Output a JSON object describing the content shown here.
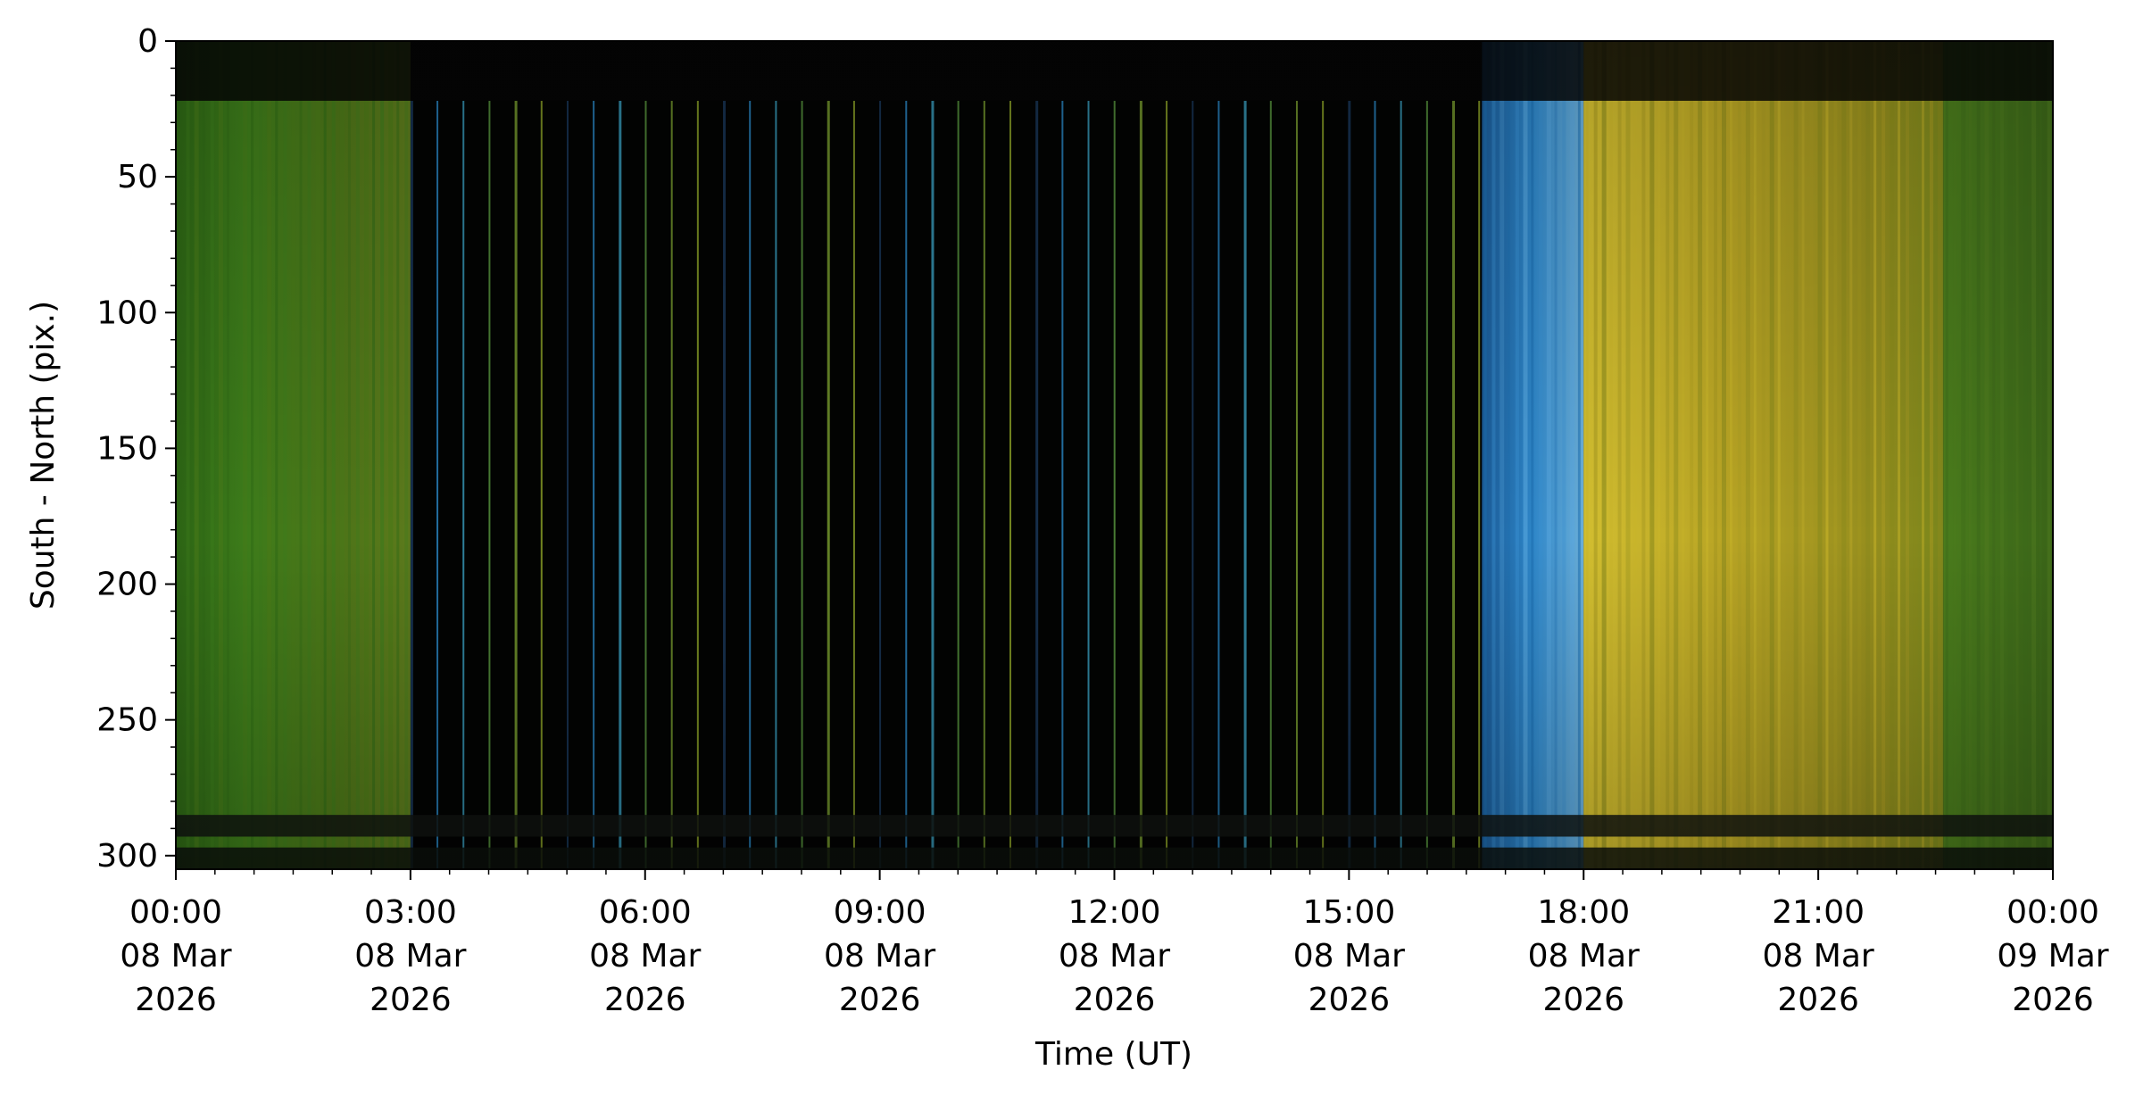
{
  "chart_data": {
    "type": "heatmap",
    "title": "",
    "xlabel": "Time (UT)",
    "ylabel": "South - North (pix.)",
    "ylim": [
      305,
      0
    ],
    "y_ticks": [
      0,
      50,
      100,
      150,
      200,
      250,
      300
    ],
    "y_tick_labels": [
      "0",
      "50",
      "100",
      "150",
      "200",
      "250",
      "300"
    ],
    "x_unit": "hours since 00:00 08 Mar 2026",
    "xlim": [
      0,
      24
    ],
    "x_ticks": [
      {
        "hours": 0,
        "lines": [
          "00:00",
          "08 Mar",
          "2026"
        ]
      },
      {
        "hours": 3,
        "lines": [
          "03:00",
          "08 Mar",
          "2026"
        ]
      },
      {
        "hours": 6,
        "lines": [
          "06:00",
          "08 Mar",
          "2026"
        ]
      },
      {
        "hours": 9,
        "lines": [
          "09:00",
          "08 Mar",
          "2026"
        ]
      },
      {
        "hours": 12,
        "lines": [
          "12:00",
          "08 Mar",
          "2026"
        ]
      },
      {
        "hours": 15,
        "lines": [
          "15:00",
          "08 Mar",
          "2026"
        ]
      },
      {
        "hours": 18,
        "lines": [
          "18:00",
          "08 Mar",
          "2026"
        ]
      },
      {
        "hours": 21,
        "lines": [
          "21:00",
          "08 Mar",
          "2026"
        ]
      },
      {
        "hours": 24,
        "lines": [
          "00:00",
          "09 Mar",
          "2026"
        ]
      }
    ],
    "segments": [
      {
        "start": 0.0,
        "end": 3.0,
        "kind": "green-keogram",
        "colors": [
          "#2f6a16",
          "#3c7a1c",
          "#4a7a18"
        ]
      },
      {
        "start": 3.0,
        "end": 16.7,
        "kind": "dark-gap-with-sparse-frames",
        "colors": [
          "#020302"
        ]
      },
      {
        "start": 16.7,
        "end": 18.0,
        "kind": "blue-twilight",
        "colors": [
          "#1e6fb0",
          "#3a8fd0",
          "#5aa8e0"
        ]
      },
      {
        "start": 18.0,
        "end": 22.6,
        "kind": "yellow-keogram",
        "colors": [
          "#c9b52a",
          "#a89a22",
          "#8a8a1c"
        ]
      },
      {
        "start": 22.6,
        "end": 24.0,
        "kind": "green-keogram",
        "colors": [
          "#3e6a1a",
          "#4e7a1e"
        ]
      }
    ],
    "sparse_frames": {
      "start": 3.0,
      "end": 16.7,
      "step": 0.333,
      "colors": [
        "#1a3a5c",
        "#2a8ac8",
        "#3aa0c0",
        "#5a9a40",
        "#7aa030",
        "#90a828"
      ]
    },
    "horizontal_bands": [
      {
        "y": 0,
        "y2": 22,
        "color": "#050505"
      },
      {
        "y": 285,
        "y2": 293,
        "color": "#101410"
      },
      {
        "y": 297,
        "y2": 305,
        "color": "#0c100c"
      }
    ]
  }
}
